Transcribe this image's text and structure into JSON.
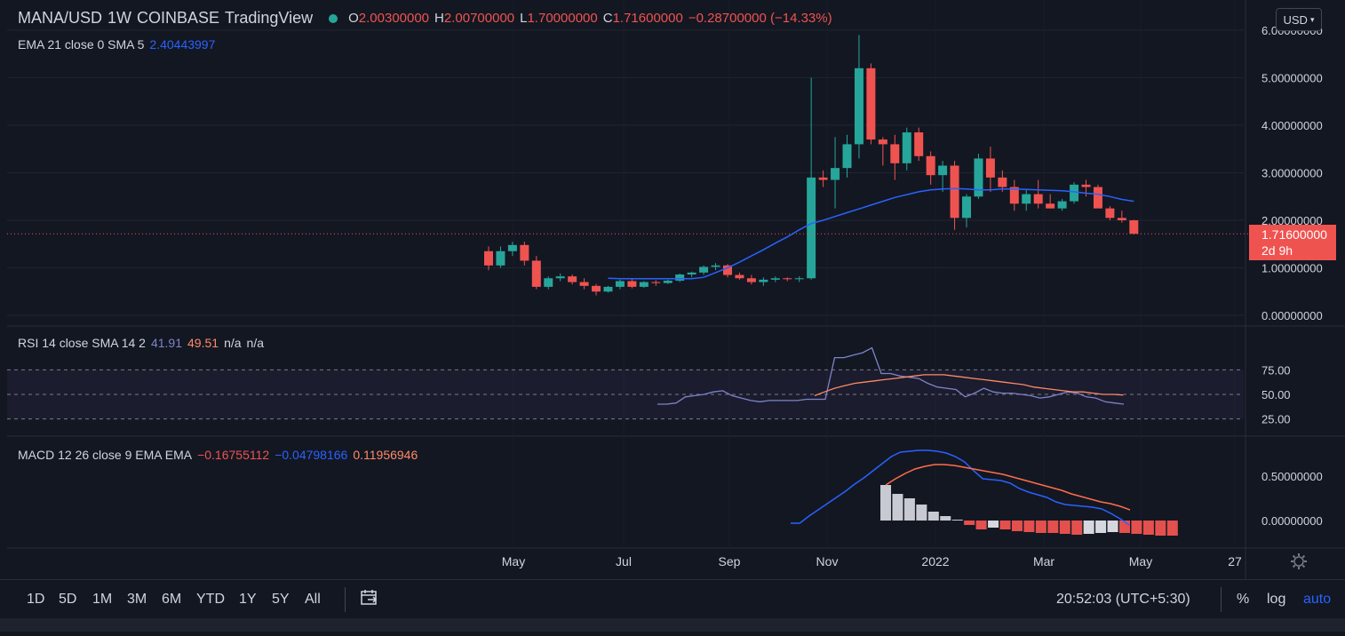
{
  "header": {
    "symbol": "MANA/USD",
    "interval": "1W",
    "exchange": "COINBASE",
    "brand": "TradingView",
    "ohlc": {
      "o_label": "O",
      "o": "2.00300000",
      "h_label": "H",
      "h": "2.00700000",
      "l_label": "L",
      "l": "1.70000000",
      "c_label": "C",
      "c": "1.71600000",
      "change": "−0.28700000 (−14.33%)"
    },
    "currency": "USD"
  },
  "ema_legend": {
    "name": "EMA 21 close 0 SMA 5",
    "value": "2.40443997"
  },
  "rsi_legend": {
    "name": "RSI 14 close SMA 14 2",
    "rsi": "41.91",
    "sma": "49.51",
    "na1": "n/a",
    "na2": "n/a"
  },
  "macd_legend": {
    "name": "MACD 12 26 close 9 EMA EMA",
    "hist": "−0.16755112",
    "macd": "−0.04798166",
    "signal": "0.11956946"
  },
  "price_axis": [
    "6.00000000",
    "5.00000000",
    "4.00000000",
    "3.00000000",
    "2.00000000",
    "1.00000000",
    "0.00000000"
  ],
  "rsi_axis": [
    "75.00",
    "50.00",
    "25.00"
  ],
  "macd_axis": [
    "0.50000000",
    "0.00000000"
  ],
  "time_axis": [
    "May",
    "Jul",
    "Sep",
    "Nov",
    "2022",
    "Mar",
    "May",
    "27"
  ],
  "last_price": {
    "value": "1.71600000",
    "countdown": "2d 9h"
  },
  "toolbar": {
    "ranges": [
      "1D",
      "5D",
      "1M",
      "3M",
      "6M",
      "YTD",
      "1Y",
      "5Y",
      "All"
    ],
    "time": "20:52:03 (UTC+5:30)",
    "percent": "%",
    "log": "log",
    "auto": "auto"
  },
  "colors": {
    "up": "#26a69a",
    "down": "#ef5350",
    "ema": "#2962ff",
    "rsi": "#7e83c8",
    "rsi_sma": "#ff8a65",
    "bg": "#131722"
  },
  "chart_data": [
    {
      "type": "candlestick",
      "title": "MANA/USD 1W COINBASE",
      "ylim": [
        0,
        6
      ],
      "candles": [
        {
          "o": 1.35,
          "h": 1.45,
          "l": 0.95,
          "c": 1.05
        },
        {
          "o": 1.05,
          "h": 1.45,
          "l": 1.0,
          "c": 1.35
        },
        {
          "o": 1.35,
          "h": 1.55,
          "l": 1.25,
          "c": 1.48
        },
        {
          "o": 1.48,
          "h": 1.55,
          "l": 1.05,
          "c": 1.15
        },
        {
          "o": 1.15,
          "h": 1.25,
          "l": 0.55,
          "c": 0.6
        },
        {
          "o": 0.6,
          "h": 0.82,
          "l": 0.55,
          "c": 0.78
        },
        {
          "o": 0.78,
          "h": 0.88,
          "l": 0.72,
          "c": 0.82
        },
        {
          "o": 0.82,
          "h": 0.86,
          "l": 0.65,
          "c": 0.7
        },
        {
          "o": 0.7,
          "h": 0.78,
          "l": 0.55,
          "c": 0.62
        },
        {
          "o": 0.62,
          "h": 0.66,
          "l": 0.42,
          "c": 0.5
        },
        {
          "o": 0.5,
          "h": 0.62,
          "l": 0.48,
          "c": 0.6
        },
        {
          "o": 0.6,
          "h": 0.75,
          "l": 0.55,
          "c": 0.72
        },
        {
          "o": 0.72,
          "h": 0.76,
          "l": 0.57,
          "c": 0.6
        },
        {
          "o": 0.6,
          "h": 0.72,
          "l": 0.58,
          "c": 0.7
        },
        {
          "o": 0.7,
          "h": 0.74,
          "l": 0.62,
          "c": 0.68
        },
        {
          "o": 0.68,
          "h": 0.75,
          "l": 0.66,
          "c": 0.73
        },
        {
          "o": 0.73,
          "h": 0.88,
          "l": 0.7,
          "c": 0.86
        },
        {
          "o": 0.86,
          "h": 0.92,
          "l": 0.8,
          "c": 0.9
        },
        {
          "o": 0.9,
          "h": 1.05,
          "l": 0.85,
          "c": 1.02
        },
        {
          "o": 1.02,
          "h": 1.1,
          "l": 0.95,
          "c": 1.05
        },
        {
          "o": 1.05,
          "h": 1.08,
          "l": 0.8,
          "c": 0.85
        },
        {
          "o": 0.85,
          "h": 0.9,
          "l": 0.75,
          "c": 0.78
        },
        {
          "o": 0.78,
          "h": 0.85,
          "l": 0.65,
          "c": 0.7
        },
        {
          "o": 0.7,
          "h": 0.8,
          "l": 0.62,
          "c": 0.75
        },
        {
          "o": 0.75,
          "h": 0.82,
          "l": 0.7,
          "c": 0.78
        },
        {
          "o": 0.78,
          "h": 0.8,
          "l": 0.72,
          "c": 0.76
        },
        {
          "o": 0.76,
          "h": 0.82,
          "l": 0.7,
          "c": 0.78
        },
        {
          "o": 0.78,
          "h": 5.0,
          "l": 0.75,
          "c": 2.9
        },
        {
          "o": 2.9,
          "h": 3.05,
          "l": 2.7,
          "c": 2.85
        },
        {
          "o": 2.85,
          "h": 3.75,
          "l": 2.25,
          "c": 3.1
        },
        {
          "o": 3.1,
          "h": 3.8,
          "l": 2.9,
          "c": 3.6
        },
        {
          "o": 3.6,
          "h": 5.9,
          "l": 3.3,
          "c": 5.2
        },
        {
          "o": 5.2,
          "h": 5.3,
          "l": 3.6,
          "c": 3.7
        },
        {
          "o": 3.7,
          "h": 3.75,
          "l": 3.15,
          "c": 3.6
        },
        {
          "o": 3.6,
          "h": 3.8,
          "l": 2.85,
          "c": 3.2
        },
        {
          "o": 3.2,
          "h": 3.95,
          "l": 3.05,
          "c": 3.85
        },
        {
          "o": 3.85,
          "h": 3.95,
          "l": 3.25,
          "c": 3.35
        },
        {
          "o": 3.35,
          "h": 3.45,
          "l": 2.75,
          "c": 2.95
        },
        {
          "o": 2.95,
          "h": 3.25,
          "l": 2.6,
          "c": 3.15
        },
        {
          "o": 3.15,
          "h": 3.25,
          "l": 1.8,
          "c": 2.05
        },
        {
          "o": 2.05,
          "h": 2.55,
          "l": 1.85,
          "c": 2.5
        },
        {
          "o": 2.5,
          "h": 3.4,
          "l": 2.45,
          "c": 3.3
        },
        {
          "o": 3.3,
          "h": 3.55,
          "l": 2.6,
          "c": 2.9
        },
        {
          "o": 2.9,
          "h": 3.05,
          "l": 2.6,
          "c": 2.7
        },
        {
          "o": 2.7,
          "h": 2.85,
          "l": 2.2,
          "c": 2.35
        },
        {
          "o": 2.35,
          "h": 2.65,
          "l": 2.2,
          "c": 2.55
        },
        {
          "o": 2.55,
          "h": 2.85,
          "l": 2.25,
          "c": 2.35
        },
        {
          "o": 2.35,
          "h": 2.55,
          "l": 2.25,
          "c": 2.25
        },
        {
          "o": 2.25,
          "h": 2.45,
          "l": 2.2,
          "c": 2.4
        },
        {
          "o": 2.4,
          "h": 2.8,
          "l": 2.35,
          "c": 2.75
        },
        {
          "o": 2.75,
          "h": 2.85,
          "l": 2.5,
          "c": 2.7
        },
        {
          "o": 2.7,
          "h": 2.75,
          "l": 2.3,
          "c": 2.25
        },
        {
          "o": 2.25,
          "h": 2.3,
          "l": 2.0,
          "c": 2.05
        },
        {
          "o": 2.05,
          "h": 2.2,
          "l": 1.95,
          "c": 2.0
        },
        {
          "o": 2.0,
          "h": 2.01,
          "l": 1.7,
          "c": 1.716
        }
      ],
      "ema": [
        0.78,
        0.77,
        0.77,
        0.77,
        0.77,
        0.77,
        0.77,
        0.77,
        0.8,
        0.9,
        1.0,
        1.12,
        1.25,
        1.38,
        1.52,
        1.65,
        1.8,
        1.93,
        2.0,
        2.08,
        2.16,
        2.24,
        2.32,
        2.4,
        2.48,
        2.54,
        2.6,
        2.64,
        2.66,
        2.67,
        2.66,
        2.64,
        2.64,
        2.66,
        2.66,
        2.65,
        2.64,
        2.63,
        2.62,
        2.6,
        2.57,
        2.55,
        2.5,
        2.44,
        2.4
      ],
      "last_price": 1.716
    },
    {
      "type": "line",
      "title": "RSI 14 close SMA 14 2",
      "ylim": [
        20,
        90
      ],
      "levels": [
        70,
        50,
        30
      ],
      "rsi": [
        42,
        42,
        43,
        48,
        49,
        50,
        52,
        53,
        49,
        47,
        45,
        44,
        45,
        45,
        45,
        45,
        46,
        46,
        46,
        80,
        80,
        82,
        84,
        88,
        67,
        67,
        65,
        64,
        63,
        59,
        56,
        55,
        54,
        48,
        51,
        55,
        52,
        51,
        51,
        50,
        49,
        47,
        48,
        50,
        52,
        51,
        48,
        47,
        44,
        43,
        42
      ],
      "rsi_sma": [
        49,
        52,
        55,
        57,
        59,
        60,
        61,
        62,
        63,
        64,
        65,
        66,
        66,
        66,
        65,
        64,
        63,
        62,
        61,
        60,
        59,
        58,
        56,
        55,
        54,
        53,
        52,
        52,
        51,
        50,
        50,
        49.5
      ]
    },
    {
      "type": "bar",
      "title": "MACD 12 26 close 9 EMA EMA",
      "ylim": [
        -0.3,
        0.85
      ],
      "macd": [
        -0.03,
        -0.03,
        0.05,
        0.12,
        0.19,
        0.26,
        0.33,
        0.41,
        0.48,
        0.56,
        0.64,
        0.72,
        0.77,
        0.78,
        0.79,
        0.79,
        0.78,
        0.76,
        0.72,
        0.66,
        0.56,
        0.47,
        0.46,
        0.45,
        0.42,
        0.36,
        0.32,
        0.29,
        0.26,
        0.21,
        0.18,
        0.17,
        0.16,
        0.15,
        0.13,
        0.08,
        0.02,
        -0.05
      ],
      "signal": [
        0.4,
        0.47,
        0.53,
        0.58,
        0.61,
        0.63,
        0.63,
        0.62,
        0.6,
        0.58,
        0.56,
        0.54,
        0.52,
        0.49,
        0.46,
        0.43,
        0.4,
        0.37,
        0.34,
        0.3,
        0.27,
        0.24,
        0.21,
        0.19,
        0.16,
        0.12
      ],
      "histogram": [
        0.4,
        0.3,
        0.25,
        0.18,
        0.1,
        0.05,
        0.01,
        -0.05,
        -0.1,
        -0.08,
        -0.1,
        -0.12,
        -0.13,
        -0.14,
        -0.14,
        -0.15,
        -0.16,
        -0.15,
        -0.14,
        -0.13,
        -0.14,
        -0.15,
        -0.16,
        -0.17,
        -0.17
      ]
    }
  ]
}
